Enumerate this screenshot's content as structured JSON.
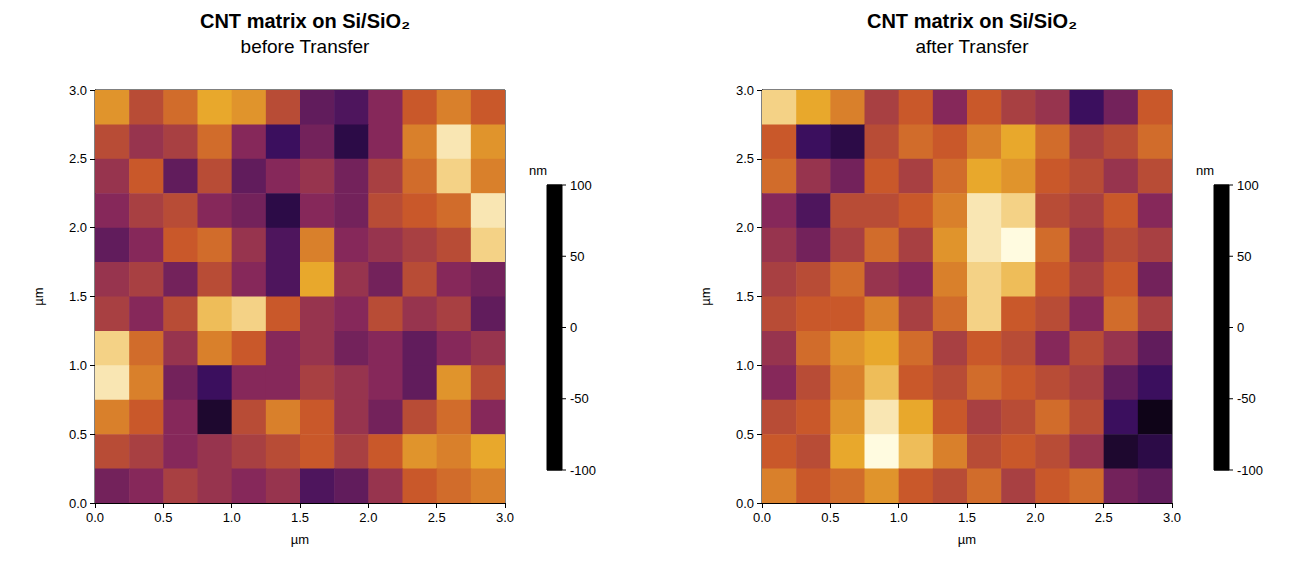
{
  "chart_data": [
    {
      "type": "heatmap",
      "title": "CNT matrix on Si/SiO₂",
      "subtitle": "before Transfer",
      "x_label": "µm",
      "y_label": "µm",
      "xlim": [
        0,
        3
      ],
      "ylim": [
        0,
        3
      ],
      "xticks": [
        {
          "value": 0,
          "label": "0.0"
        },
        0.5,
        {
          "value": 1,
          "label": "1.0"
        },
        1.5,
        {
          "value": 2,
          "label": "2.0"
        },
        2.5,
        {
          "value": 3,
          "label": "3.0"
        }
      ],
      "yticks": [
        {
          "value": 0,
          "label": "0.0"
        },
        0.5,
        {
          "value": 1,
          "label": "1.0"
        },
        1.5,
        {
          "value": 2,
          "label": "2.0"
        },
        2.5,
        {
          "value": 3,
          "label": "3.0"
        }
      ],
      "cells": [
        [
          50,
          10,
          30,
          60,
          50,
          10,
          -40,
          -50,
          -20,
          20,
          40,
          20
        ],
        [
          10,
          -10,
          0,
          30,
          -20,
          -60,
          -30,
          -70,
          -20,
          40,
          90,
          50
        ],
        [
          -10,
          20,
          -40,
          10,
          -40,
          -20,
          -10,
          -30,
          0,
          30,
          80,
          40
        ],
        [
          -20,
          0,
          10,
          -20,
          -30,
          -70,
          -20,
          -30,
          10,
          20,
          30,
          90
        ],
        [
          -40,
          -20,
          20,
          30,
          -10,
          -50,
          40,
          -20,
          -10,
          0,
          10,
          80
        ],
        [
          -10,
          0,
          -30,
          10,
          -20,
          -50,
          60,
          -10,
          -30,
          10,
          -20,
          -30
        ],
        [
          0,
          -20,
          10,
          70,
          80,
          20,
          -10,
          -20,
          10,
          -10,
          0,
          -40
        ],
        [
          80,
          30,
          -10,
          40,
          20,
          -20,
          -10,
          -30,
          -20,
          -40,
          -20,
          -10
        ],
        [
          90,
          40,
          -30,
          -60,
          -20,
          -20,
          0,
          -10,
          -20,
          -40,
          50,
          10
        ],
        [
          40,
          20,
          -20,
          -80,
          10,
          40,
          20,
          -10,
          -30,
          10,
          30,
          -20
        ],
        [
          10,
          0,
          -20,
          -10,
          0,
          10,
          20,
          0,
          20,
          50,
          40,
          60
        ],
        [
          -30,
          -20,
          0,
          -10,
          -20,
          -10,
          -50,
          -40,
          -10,
          20,
          30,
          40
        ]
      ],
      "colorbar_label": "nm",
      "colorbar_range": [
        -100,
        100
      ],
      "colorbar_ticks": [
        -100,
        -50,
        0,
        50,
        100
      ],
      "colors": [
        "#000000",
        "#3b0f5e",
        "#86285a",
        "#c9582a",
        "#e8a82c",
        "#fffbe0"
      ]
    },
    {
      "type": "heatmap",
      "title": "CNT matrix on Si/SiO₂",
      "subtitle": "after Transfer",
      "x_label": "µm",
      "y_label": "µm",
      "xlim": [
        0,
        3
      ],
      "ylim": [
        0,
        3
      ],
      "xticks": [
        {
          "value": 0,
          "label": "0.0"
        },
        0.5,
        {
          "value": 1,
          "label": "1.0"
        },
        1.5,
        {
          "value": 2,
          "label": "2.0"
        },
        2.5,
        {
          "value": 3,
          "label": "3.0"
        }
      ],
      "yticks": [
        {
          "value": 0,
          "label": "0.0"
        },
        0.5,
        {
          "value": 1,
          "label": "1.0"
        },
        1.5,
        {
          "value": 2,
          "label": "2.0"
        },
        2.5,
        {
          "value": 3,
          "label": "3.0"
        }
      ],
      "cells": [
        [
          80,
          60,
          40,
          0,
          20,
          -20,
          20,
          0,
          -10,
          -60,
          -30,
          20
        ],
        [
          20,
          -60,
          -70,
          10,
          30,
          20,
          40,
          60,
          30,
          0,
          10,
          30
        ],
        [
          30,
          -10,
          -30,
          20,
          0,
          30,
          60,
          50,
          20,
          10,
          -10,
          10
        ],
        [
          -20,
          -50,
          10,
          10,
          20,
          40,
          90,
          80,
          10,
          0,
          20,
          -20
        ],
        [
          -10,
          -30,
          0,
          30,
          0,
          50,
          90,
          100,
          30,
          -10,
          10,
          0
        ],
        [
          0,
          10,
          30,
          -10,
          -20,
          40,
          80,
          70,
          20,
          0,
          20,
          -30
        ],
        [
          10,
          20,
          20,
          40,
          0,
          30,
          80,
          20,
          10,
          -20,
          30,
          0
        ],
        [
          -10,
          30,
          50,
          60,
          30,
          0,
          20,
          10,
          -20,
          10,
          -10,
          -40
        ],
        [
          -20,
          10,
          40,
          70,
          20,
          10,
          30,
          20,
          10,
          0,
          -40,
          -60
        ],
        [
          10,
          20,
          50,
          90,
          60,
          20,
          0,
          10,
          30,
          10,
          -60,
          -90
        ],
        [
          20,
          10,
          60,
          100,
          70,
          40,
          10,
          20,
          10,
          -10,
          -80,
          -70
        ],
        [
          40,
          20,
          30,
          50,
          20,
          10,
          30,
          0,
          20,
          30,
          -30,
          -40
        ]
      ],
      "colorbar_label": "nm",
      "colorbar_range": [
        -100,
        100
      ],
      "colorbar_ticks": [
        -100,
        -50,
        0,
        50,
        100
      ],
      "colors": [
        "#000000",
        "#3b0f5e",
        "#86285a",
        "#c9582a",
        "#e8a82c",
        "#fffbe0"
      ]
    }
  ]
}
